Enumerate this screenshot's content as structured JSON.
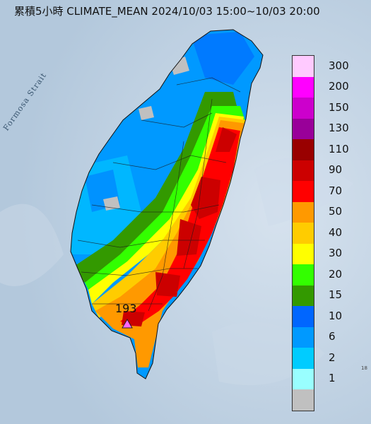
{
  "title": "累積5小時 CLIMATE_MEAN 2024/10/03 15:00~10/03 20:00",
  "water_label": "Formosa Strait",
  "max_station_value": "193",
  "corner_text": "18",
  "legend": [
    {
      "label": "300",
      "color": "#ffcaff"
    },
    {
      "label": "200",
      "color": "#ff00ff"
    },
    {
      "label": "150",
      "color": "#cc00cc"
    },
    {
      "label": "130",
      "color": "#990099"
    },
    {
      "label": "110",
      "color": "#990000"
    },
    {
      "label": "90",
      "color": "#cc0000"
    },
    {
      "label": "70",
      "color": "#ff0000"
    },
    {
      "label": "50",
      "color": "#ff9900"
    },
    {
      "label": "40",
      "color": "#ffcc00"
    },
    {
      "label": "30",
      "color": "#ffff00"
    },
    {
      "label": "20",
      "color": "#33ff00"
    },
    {
      "label": "15",
      "color": "#339900"
    },
    {
      "label": "10",
      "color": "#0066ff"
    },
    {
      "label": "6",
      "color": "#0099ff"
    },
    {
      "label": "2",
      "color": "#00ccff"
    },
    {
      "label": "1",
      "color": "#99ffff"
    },
    {
      "label": "",
      "color": "#c0c0c0"
    }
  ],
  "colors": {
    "sea": "#b9cde0",
    "sea_dark": "#9fb7cf",
    "no_data": "#c0c0c0"
  }
}
